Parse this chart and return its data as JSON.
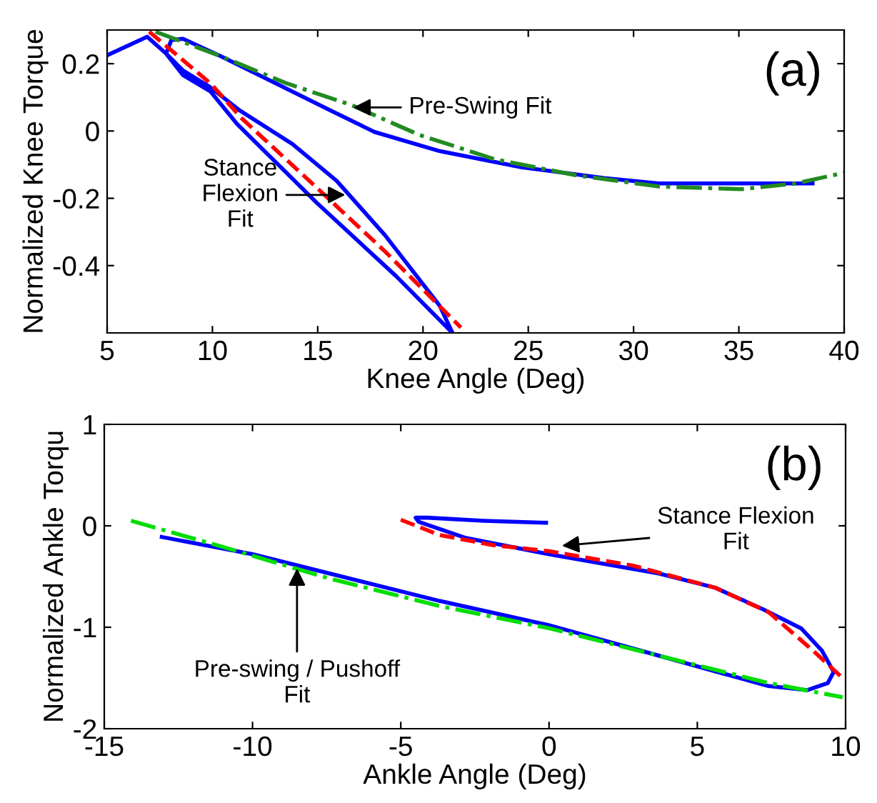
{
  "chart_data": [
    {
      "type": "line",
      "title": "(a)",
      "xlabel": "Knee Angle (Deg)",
      "ylabel": "Normalized Knee Torque",
      "xlim": [
        5,
        40
      ],
      "ylim": [
        -0.6,
        0.3
      ],
      "xticks": [
        5,
        10,
        15,
        20,
        25,
        30,
        35,
        40
      ],
      "yticks": [
        -0.4,
        -0.2,
        0,
        0.2
      ],
      "grid": false,
      "legend": false,
      "series": [
        {
          "color": "#0000ff",
          "line_style": "solid",
          "x": [
            5,
            6.9,
            7.8,
            8.6,
            9.9,
            11.17,
            14.95,
            18.7,
            21.4,
            20.8,
            18.2,
            15.9,
            13.8,
            11.3,
            9.9,
            8.6,
            7.8,
            8.05,
            8.6,
            10.4,
            13,
            15.6,
            17.7,
            20.8,
            24.7,
            28.6,
            31.2,
            38.5
          ],
          "values": [
            0.225,
            0.28,
            0.23,
            0.166,
            0.118,
            0.021,
            -0.213,
            -0.43,
            -0.6,
            -0.52,
            -0.31,
            -0.148,
            -0.039,
            0.061,
            0.13,
            0.18,
            0.23,
            0.27,
            0.274,
            0.222,
            0.142,
            0.061,
            -0.003,
            -0.06,
            -0.108,
            -0.14,
            -0.156,
            -0.156
          ]
        },
        {
          "color": "#ff0000",
          "line_style": "dashed",
          "x": [
            7,
            9.9,
            11.4,
            14.6,
            18.2,
            21.8
          ],
          "values": [
            0.295,
            0.142,
            0.037,
            -0.148,
            -0.358,
            -0.584
          ]
        },
        {
          "color": "#228b22",
          "line_style": "dashdot",
          "x": [
            7.3,
            10.4,
            13.5,
            16.6,
            19.8,
            23.4,
            27.3,
            31.2,
            35.1,
            37.7,
            40
          ],
          "values": [
            0.295,
            0.222,
            0.142,
            0.077,
            -0.011,
            -0.084,
            -0.132,
            -0.165,
            -0.173,
            -0.156,
            -0.124
          ]
        }
      ],
      "annotations": [
        {
          "text": "Pre-Swing Fit",
          "x": 16.5,
          "y": 0.07
        },
        {
          "text": "Stance\nFlexion\nFit",
          "x": 16.5,
          "y": -0.19
        }
      ]
    },
    {
      "type": "line",
      "title": "(b)",
      "xlabel": "Ankle Angle (Deg)",
      "ylabel": "Normalized Ankle Torqu",
      "xlim": [
        -15,
        10
      ],
      "ylim": [
        -2,
        1
      ],
      "xticks": [
        -15,
        -10,
        -5,
        0,
        5,
        10
      ],
      "yticks": [
        -2,
        -1,
        0,
        1
      ],
      "grid": false,
      "legend": false,
      "series": [
        {
          "color": "#0000ff",
          "line_style": "solid",
          "x": [
            -13.06,
            -10,
            -7.4,
            -3.7,
            0,
            3.7,
            7.4,
            8.7,
            9.4,
            9.6,
            9.2,
            8.5,
            7.2,
            5.6,
            3.7,
            0,
            -2.8,
            -4.4,
            -4.5,
            -4.1,
            -2.2,
            -0.1
          ],
          "values": [
            -0.11,
            -0.28,
            -0.47,
            -0.74,
            -0.98,
            -1.28,
            -1.58,
            -1.62,
            -1.55,
            -1.44,
            -1.23,
            -1.01,
            -0.82,
            -0.61,
            -0.47,
            -0.28,
            -0.12,
            0.04,
            0.08,
            0.08,
            0.05,
            0.03
          ]
        },
        {
          "color": "#ff0000",
          "line_style": "dashed",
          "x": [
            -5,
            -3.7,
            -1.9,
            0,
            2.8,
            5.6,
            7.4,
            8.9,
            9.9
          ],
          "values": [
            0.06,
            -0.09,
            -0.19,
            -0.25,
            -0.39,
            -0.61,
            -0.85,
            -1.23,
            -1.5
          ]
        },
        {
          "color": "#00dd00",
          "line_style": "dashdot",
          "x": [
            -14.1,
            -11.1,
            -7.4,
            -3.7,
            0,
            3.7,
            7.4,
            9.9
          ],
          "values": [
            0.05,
            -0.2,
            -0.52,
            -0.79,
            -1.01,
            -1.28,
            -1.55,
            -1.69
          ]
        }
      ],
      "annotations": [
        {
          "text": "Stance Flexion\nFit",
          "x": 0.3,
          "y": -0.2
        },
        {
          "text": "Pre-swing / Pushoff\nFit",
          "x": -8.5,
          "y": -0.38
        }
      ]
    }
  ]
}
